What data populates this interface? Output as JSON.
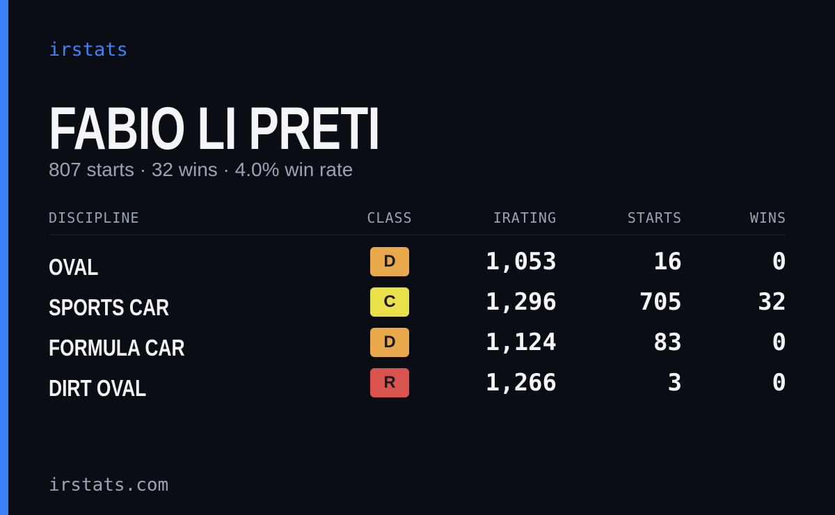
{
  "brand": "irstats",
  "driver": {
    "name": "FABIO LI PRETI",
    "summary": "807 starts · 32 wins · 4.0% win rate"
  },
  "table": {
    "headers": [
      "DISCIPLINE",
      "CLASS",
      "IRATING",
      "STARTS",
      "WINS"
    ],
    "rows": [
      [
        "OVAL",
        "D",
        "1,053",
        "16",
        "0"
      ],
      [
        "SPORTS CAR",
        "C",
        "1,296",
        "705",
        "32"
      ],
      [
        "FORMULA CAR",
        "D",
        "1,124",
        "83",
        "0"
      ],
      [
        "DIRT OVAL",
        "R",
        "1,266",
        "3",
        "0"
      ]
    ],
    "class_colors": {
      "D": "#e8a84c",
      "C": "#e9e04a",
      "R": "#d9534f"
    }
  },
  "footer": "irstats.com"
}
